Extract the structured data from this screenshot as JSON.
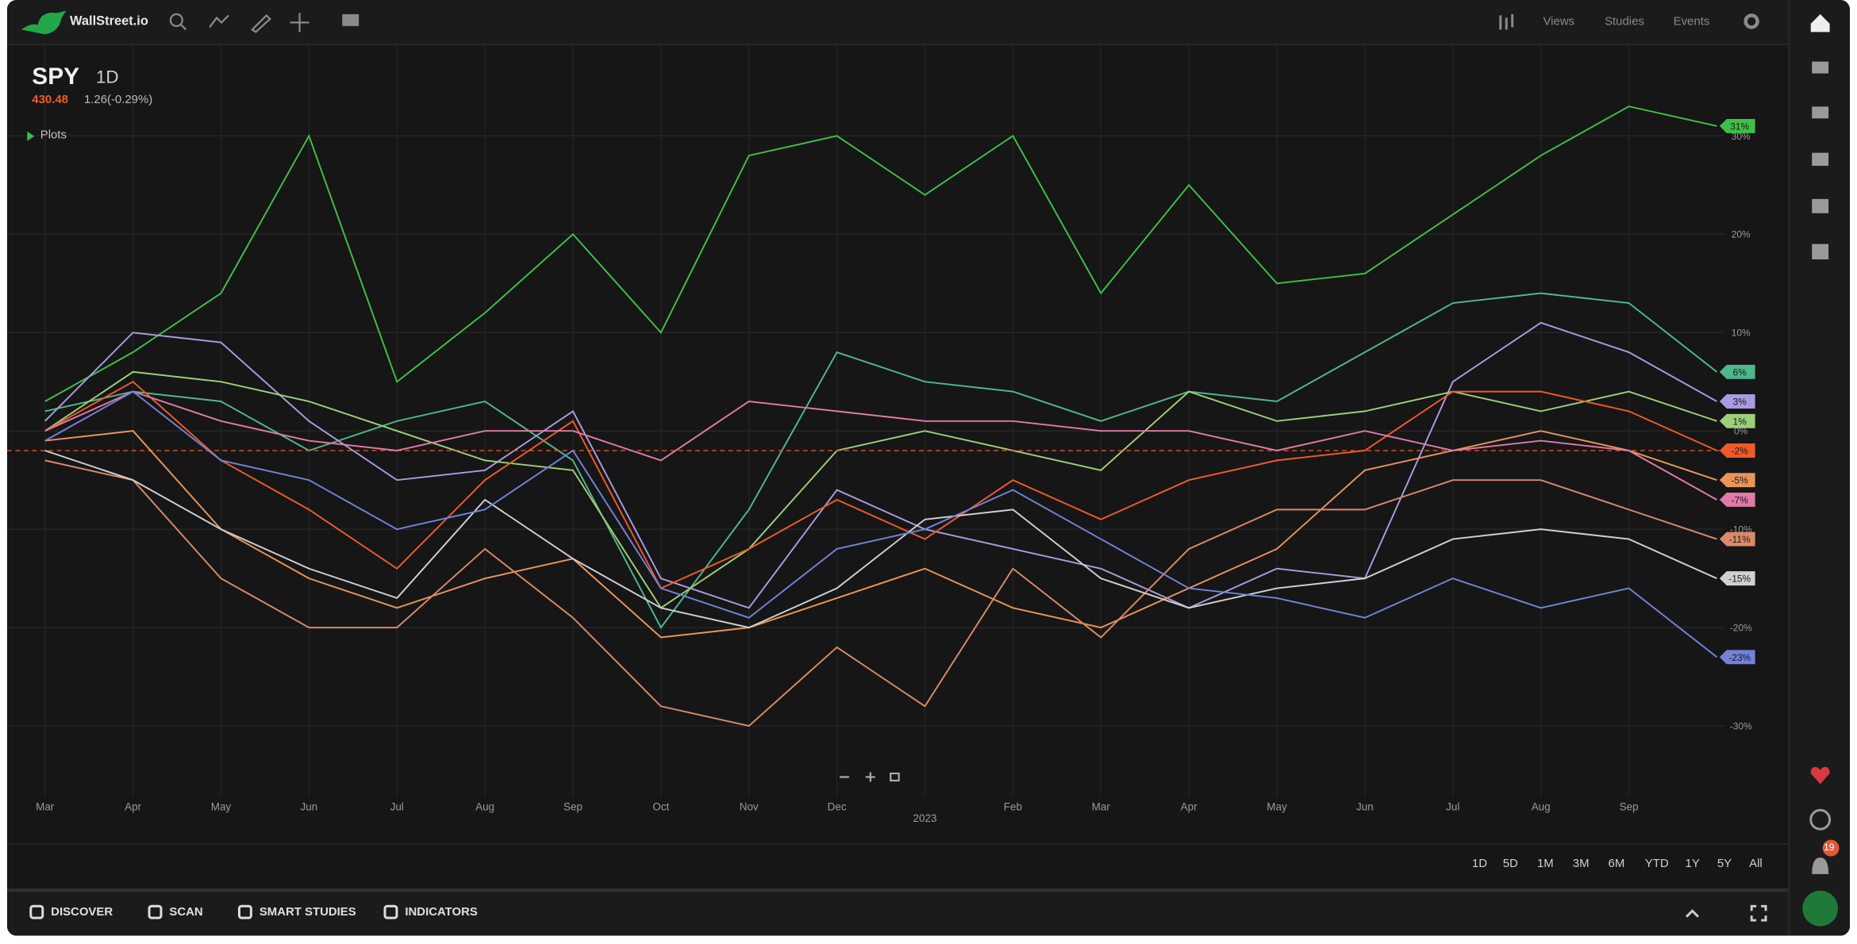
{
  "header": {
    "brand": "WallStreet.io",
    "menus": [
      "Views",
      "Studies",
      "Events"
    ]
  },
  "quote": {
    "symbol": "SPY",
    "interval": "1D",
    "price": "430.48",
    "change": "1.26(-0.29%)",
    "plots": "Plots"
  },
  "timeframes": [
    "1D",
    "5D",
    "1M",
    "3M",
    "6M",
    "YTD",
    "1Y",
    "5Y",
    "All"
  ],
  "toolbar": [
    "DISCOVER",
    "SCAN",
    "SMART STUDIES",
    "INDICATORS"
  ],
  "notifications": "19",
  "chart_data": {
    "type": "line",
    "categories": [
      "Mar",
      "Apr",
      "May",
      "Jun",
      "Jul",
      "Aug",
      "Sep",
      "Oct",
      "Nov",
      "Dec",
      "2023",
      "Feb",
      "Mar",
      "Apr",
      "May",
      "Jun",
      "Jul",
      "Aug",
      "Sep",
      null
    ],
    "ylim": [
      -37,
      39
    ],
    "yticks": [
      {
        "value": 30,
        "label": "30%"
      },
      {
        "value": 20,
        "label": "20%"
      },
      {
        "value": 10,
        "label": "10%"
      },
      {
        "value": 0,
        "label": "0%"
      },
      {
        "value": -10,
        "label": "-10%"
      },
      {
        "value": -20,
        "label": "-20%"
      },
      {
        "value": -30,
        "label": "-30%"
      }
    ],
    "grid": true,
    "series": [
      {
        "color": "#3fbf4a",
        "values": [
          3,
          8,
          14,
          30,
          5,
          12,
          20,
          10,
          28,
          30,
          24,
          30,
          14,
          25,
          15,
          16,
          22,
          28,
          33,
          31
        ],
        "value_labels": [
          null,
          null,
          null,
          null,
          null,
          null,
          null,
          null,
          null,
          null,
          null,
          null,
          null,
          null,
          null,
          null,
          null,
          null,
          null,
          "31%"
        ]
      },
      {
        "color": "#4fb88a",
        "values": [
          2,
          4,
          3,
          -2,
          1,
          3,
          -3,
          -20,
          -8,
          8,
          5,
          4,
          1,
          4,
          3,
          8,
          13,
          14,
          13,
          6
        ],
        "value_labels": [
          null,
          null,
          null,
          null,
          null,
          null,
          null,
          null,
          null,
          null,
          null,
          null,
          null,
          null,
          null,
          null,
          null,
          null,
          null,
          "6%"
        ]
      },
      {
        "color": "#a99be0",
        "values": [
          1,
          10,
          9,
          1,
          -5,
          -4,
          2,
          -15,
          -18,
          -6,
          -10,
          -12,
          -14,
          -18,
          -14,
          -15,
          5,
          11,
          8,
          3
        ],
        "value_labels": [
          null,
          null,
          null,
          null,
          null,
          null,
          null,
          null,
          null,
          null,
          null,
          null,
          null,
          null,
          null,
          null,
          null,
          null,
          null,
          "3%"
        ]
      },
      {
        "color": "#9ccf7a",
        "values": [
          0,
          6,
          5,
          3,
          0,
          -3,
          -4,
          -18,
          -12,
          -2,
          0,
          -2,
          -4,
          4,
          1,
          2,
          4,
          2,
          4,
          1
        ],
        "value_labels": [
          null,
          null,
          null,
          null,
          null,
          null,
          null,
          null,
          null,
          null,
          null,
          null,
          null,
          null,
          null,
          null,
          null,
          null,
          null,
          "1%"
        ]
      },
      {
        "color": "#ef5a2a",
        "values": [
          0,
          5,
          -3,
          -8,
          -14,
          -5,
          1,
          -16,
          -12,
          -7,
          -11,
          -5,
          -9,
          -5,
          -3,
          -2,
          4,
          4,
          2,
          -2
        ],
        "value_labels": [
          null,
          null,
          null,
          null,
          null,
          null,
          null,
          null,
          null,
          null,
          null,
          null,
          null,
          null,
          null,
          null,
          null,
          null,
          null,
          "-2%"
        ]
      },
      {
        "color": "#e8955a",
        "values": [
          -1,
          0,
          -10,
          -15,
          -18,
          -15,
          -13,
          -21,
          -20,
          -17,
          -14,
          -18,
          -20,
          -16,
          -12,
          -4,
          -2,
          0,
          -2,
          -5
        ],
        "value_labels": [
          null,
          null,
          null,
          null,
          null,
          null,
          null,
          null,
          null,
          null,
          null,
          null,
          null,
          null,
          null,
          null,
          null,
          null,
          null,
          "-5%"
        ]
      },
      {
        "color": "#e07aa8",
        "values": [
          0,
          4,
          1,
          -1,
          -2,
          0,
          0,
          -3,
          3,
          2,
          1,
          1,
          0,
          0,
          -2,
          0,
          -2,
          -1,
          -2,
          -7
        ],
        "value_labels": [
          null,
          null,
          null,
          null,
          null,
          null,
          null,
          null,
          null,
          null,
          null,
          null,
          null,
          null,
          null,
          null,
          null,
          null,
          null,
          "-7%"
        ]
      },
      {
        "color": "#d98a6a",
        "values": [
          -3,
          -5,
          -15,
          -20,
          -20,
          -12,
          -19,
          -28,
          -30,
          -22,
          -28,
          -14,
          -21,
          -12,
          -8,
          -8,
          -5,
          -5,
          -8,
          -11
        ],
        "value_labels": [
          null,
          null,
          null,
          null,
          null,
          null,
          null,
          null,
          null,
          null,
          null,
          null,
          null,
          null,
          null,
          null,
          null,
          null,
          null,
          "-11%"
        ]
      },
      {
        "color": "#d0d0d0",
        "values": [
          -2,
          -5,
          -10,
          -14,
          -17,
          -7,
          -13,
          -18,
          -20,
          -16,
          -9,
          -8,
          -15,
          -18,
          -16,
          -15,
          -11,
          -10,
          -11,
          -15
        ],
        "value_labels": [
          null,
          null,
          null,
          null,
          null,
          null,
          null,
          null,
          null,
          null,
          null,
          null,
          null,
          null,
          null,
          null,
          null,
          null,
          null,
          "-15%"
        ]
      },
      {
        "color": "#7382d8",
        "values": [
          -1,
          4,
          -3,
          -5,
          -10,
          -8,
          -2,
          -16,
          -19,
          -12,
          -10,
          -6,
          -11,
          -16,
          -17,
          -19,
          -15,
          -18,
          -16,
          -23
        ],
        "value_labels": [
          null,
          null,
          null,
          null,
          null,
          null,
          null,
          null,
          null,
          null,
          null,
          null,
          null,
          null,
          null,
          null,
          null,
          null,
          null,
          "-23%"
        ]
      }
    ]
  }
}
